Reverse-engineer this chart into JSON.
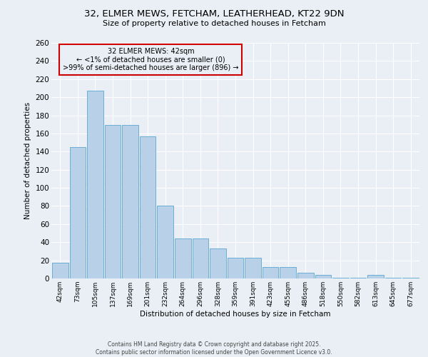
{
  "title1": "32, ELMER MEWS, FETCHAM, LEATHERHEAD, KT22 9DN",
  "title2": "Size of property relative to detached houses in Fetcham",
  "xlabel": "Distribution of detached houses by size in Fetcham",
  "ylabel": "Number of detached properties",
  "categories": [
    "42sqm",
    "73sqm",
    "105sqm",
    "137sqm",
    "169sqm",
    "201sqm",
    "232sqm",
    "264sqm",
    "296sqm",
    "328sqm",
    "359sqm",
    "391sqm",
    "423sqm",
    "455sqm",
    "486sqm",
    "518sqm",
    "550sqm",
    "582sqm",
    "613sqm",
    "645sqm",
    "677sqm"
  ],
  "values": [
    17,
    145,
    207,
    169,
    169,
    157,
    80,
    44,
    44,
    33,
    23,
    23,
    13,
    13,
    6,
    4,
    1,
    1,
    4,
    1,
    1
  ],
  "bar_color": "#b8d0e8",
  "bar_edge_color": "#6baed6",
  "background_color": "#eaeff5",
  "grid_color": "#ffffff",
  "annotation_box_text": "32 ELMER MEWS: 42sqm\n← <1% of detached houses are smaller (0)\n>99% of semi-detached houses are larger (896) →",
  "annotation_box_color": "#cc0000",
  "footer_line1": "Contains HM Land Registry data © Crown copyright and database right 2025.",
  "footer_line2": "Contains public sector information licensed under the Open Government Licence v3.0.",
  "ylim": [
    0,
    260
  ],
  "yticks": [
    0,
    20,
    40,
    60,
    80,
    100,
    120,
    140,
    160,
    180,
    200,
    220,
    240,
    260
  ]
}
